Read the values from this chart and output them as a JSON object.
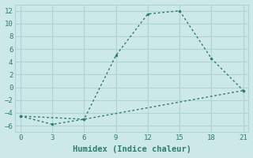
{
  "line1_x": [
    0,
    6,
    9,
    12,
    15,
    18,
    21
  ],
  "line1_y": [
    -4.5,
    -5.0,
    5.0,
    11.5,
    12.0,
    4.5,
    -0.5
  ],
  "line2_x": [
    0,
    3,
    6,
    21
  ],
  "line2_y": [
    -4.5,
    -5.8,
    -5.0,
    -0.5
  ],
  "color": "#2e7d6e",
  "bg_color": "#cce8e8",
  "grid_color": "#aed4d4",
  "xlabel": "Humidex (Indice chaleur)",
  "xlim": [
    -0.5,
    21.5
  ],
  "ylim": [
    -7,
    13
  ],
  "xticks": [
    0,
    3,
    6,
    9,
    12,
    15,
    18,
    21
  ],
  "yticks": [
    -6,
    -4,
    -2,
    0,
    2,
    4,
    6,
    8,
    10,
    12
  ],
  "font_family": "monospace"
}
